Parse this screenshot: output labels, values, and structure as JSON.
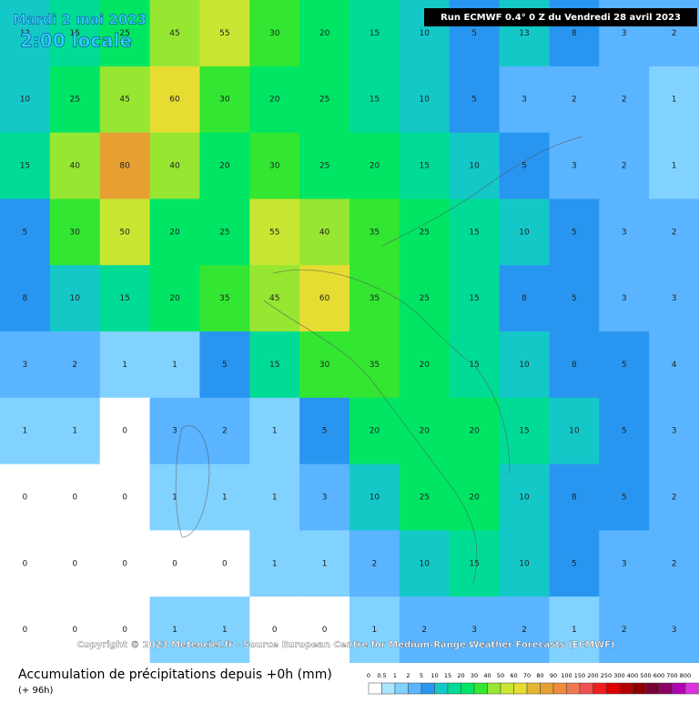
{
  "header": {
    "date": "Mardi 2 mai 2023",
    "time": "2:00  locale",
    "run": "Run ECMWF 0.4° 0 Z du Vendredi 28 avril 2023"
  },
  "map": {
    "rows": [
      [
        12,
        15,
        25,
        45,
        55,
        30,
        20,
        15,
        10,
        5,
        13,
        8,
        3,
        2
      ],
      [
        10,
        25,
        45,
        60,
        30,
        20,
        25,
        15,
        10,
        5,
        3,
        2,
        2,
        1
      ],
      [
        15,
        40,
        80,
        40,
        20,
        30,
        25,
        20,
        15,
        10,
        5,
        3,
        2,
        1
      ],
      [
        5,
        30,
        50,
        20,
        25,
        55,
        40,
        35,
        25,
        15,
        10,
        5,
        3,
        2
      ],
      [
        8,
        10,
        15,
        20,
        35,
        45,
        60,
        35,
        25,
        15,
        8,
        5,
        3,
        3
      ],
      [
        3,
        2,
        1,
        1,
        5,
        15,
        30,
        35,
        20,
        15,
        10,
        8,
        5,
        4
      ],
      [
        1,
        1,
        0,
        3,
        2,
        1,
        5,
        20,
        20,
        20,
        15,
        10,
        5,
        3
      ],
      [
        0,
        0,
        0,
        1,
        1,
        1,
        3,
        10,
        25,
        20,
        10,
        8,
        5,
        2
      ],
      [
        0,
        0,
        0,
        0,
        0,
        1,
        1,
        2,
        10,
        15,
        10,
        5,
        3,
        2
      ],
      [
        0,
        0,
        0,
        1,
        1,
        0,
        0,
        1,
        2,
        3,
        2,
        1,
        2,
        3
      ]
    ]
  },
  "copyright": "Copyright © 2023 Meteociel.fr - Source European Centre for Medium-Range Weather Forecasts (ECMWF)",
  "footer": {
    "title": "Accumulation de précipitations depuis +0h (mm)",
    "subtitle": "(+ 96h)"
  },
  "legend": {
    "levels": [
      0,
      0.5,
      1,
      2,
      5,
      10,
      15,
      20,
      30,
      40,
      50,
      60,
      70,
      80,
      90,
      100,
      150,
      200,
      250,
      300,
      400,
      500,
      600,
      700,
      800
    ],
    "colors": [
      "#ffffff",
      "#aae6ff",
      "#82d2ff",
      "#5ab4ff",
      "#2896f0",
      "#14c8c8",
      "#00dc96",
      "#00e664",
      "#32e632",
      "#96e632",
      "#c8e632",
      "#e6dc32",
      "#e6b432",
      "#e6a032",
      "#f08c3c",
      "#f07850",
      "#f05050",
      "#f01e1e",
      "#dc0000",
      "#b40000",
      "#8c0000",
      "#780032",
      "#8c0064",
      "#b400b4",
      "#dc32dc"
    ]
  }
}
